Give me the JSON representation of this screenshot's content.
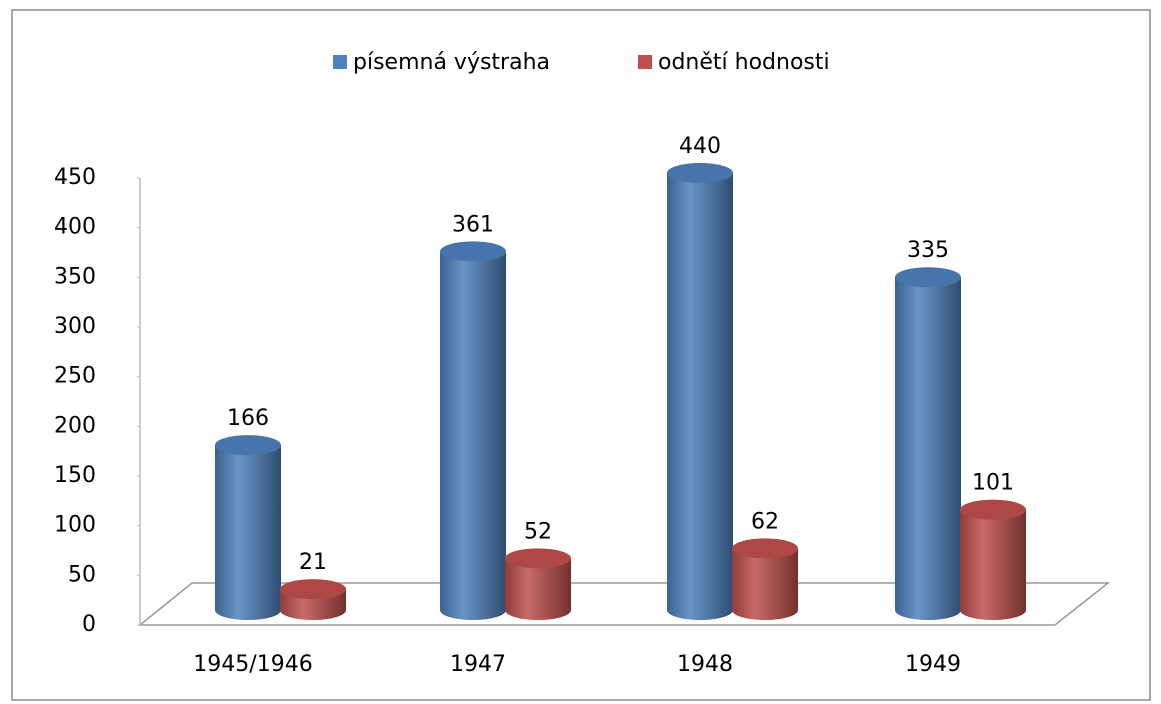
{
  "chart_data": {
    "type": "bar3d",
    "categories": [
      "1945/1946",
      "1947",
      "1948",
      "1949"
    ],
    "series": [
      {
        "name": "písemná výstraha",
        "color": "#4f81bd",
        "values": [
          166,
          361,
          440,
          335
        ]
      },
      {
        "name": "odnětí hodnosti",
        "color": "#c0504d",
        "values": [
          21,
          52,
          62,
          101
        ]
      }
    ],
    "ylim": [
      0,
      450
    ],
    "yticks": [
      0,
      50,
      100,
      150,
      200,
      250,
      300,
      350,
      400,
      450
    ],
    "legend": "top",
    "grid": false
  }
}
